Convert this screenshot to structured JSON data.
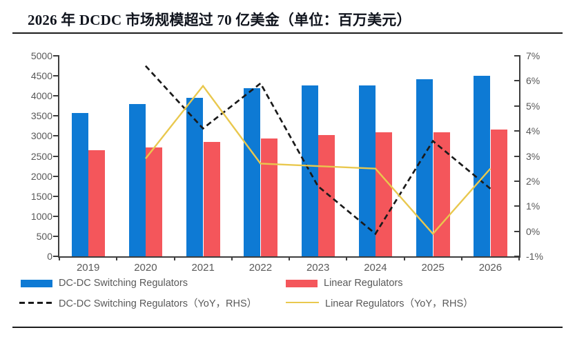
{
  "title": "2026 年 DCDC 市场规模超过 70 亿美金（单位：百万美元）",
  "chart_data": {
    "type": "bar",
    "subtype": "grouped-bars-with-yoy-lines",
    "title": "2026 年 DCDC 市场规模超过 70 亿美金（单位：百万美元）",
    "categories": [
      "2019",
      "2020",
      "2021",
      "2022",
      "2023",
      "2024",
      "2025",
      "2026"
    ],
    "series": [
      {
        "name": "DC-DC Switching Regulators",
        "type": "bar",
        "axis": "left",
        "color": "#0e7ad4",
        "values": [
          3570,
          3800,
          3950,
          4190,
          4270,
          4270,
          4420,
          4510
        ]
      },
      {
        "name": "Linear Regulators",
        "type": "bar",
        "axis": "left",
        "color": "#f4565b",
        "values": [
          2650,
          2720,
          2860,
          2940,
          3030,
          3090,
          3090,
          3170
        ]
      },
      {
        "name": "DC-DC Switching Regulators（YoY，RHS）",
        "type": "line",
        "line_style": "dashed",
        "axis": "right",
        "color": "#1a1a1a",
        "values": [
          null,
          6.6,
          4.1,
          5.9,
          1.8,
          -0.1,
          3.6,
          1.7
        ]
      },
      {
        "name": "Linear Regulators（YoY，RHS）",
        "type": "line",
        "line_style": "solid",
        "axis": "right",
        "color": "#e9c84e",
        "values": [
          null,
          2.9,
          5.8,
          2.7,
          2.6,
          2.5,
          -0.1,
          2.5
        ]
      }
    ],
    "left_axis": {
      "min": 0,
      "max": 5000,
      "step": 500,
      "tick_labels": [
        "0",
        "500",
        "1000",
        "1500",
        "2000",
        "2500",
        "3000",
        "3500",
        "4000",
        "4500",
        "5000"
      ]
    },
    "right_axis": {
      "min": -1,
      "max": 7,
      "step": 1,
      "tick_labels": [
        "-1%",
        "0%",
        "1%",
        "2%",
        "3%",
        "4%",
        "5%",
        "6%",
        "7%"
      ]
    },
    "grid": false,
    "legend_position": "bottom"
  },
  "colors": {
    "axis_line": "#3d3d3d",
    "tick_label": "#595959",
    "rule": "#1b1b1b",
    "title_text": "#10141d",
    "background": "#ffffff"
  }
}
